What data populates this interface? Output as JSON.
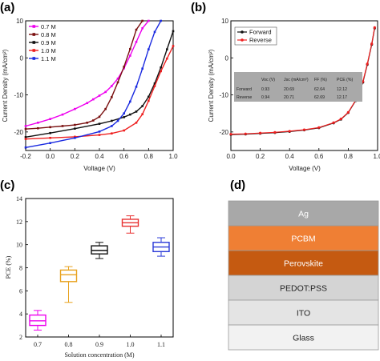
{
  "panels": {
    "a": "(a)",
    "b": "(b)",
    "c": "(c)",
    "d": "(d)"
  },
  "chart_data": [
    {
      "type": "line",
      "panel": "a",
      "xlabel": "Voltage (V)",
      "ylabel": "Current Density (mA/cm²)",
      "xlim": [
        -0.2,
        1.0
      ],
      "ylim": [
        -25,
        10
      ],
      "xticks": [
        "-0.2",
        "0.0",
        "0.2",
        "0.4",
        "0.6",
        "0.8",
        "1.0"
      ],
      "yticks": [
        "10",
        "0",
        "-10",
        "-20"
      ],
      "legend": "top-left",
      "series": [
        {
          "name": "0.7 M",
          "color": "#ee00ee",
          "x": [
            -0.2,
            -0.1,
            0.0,
            0.1,
            0.2,
            0.3,
            0.35,
            0.4,
            0.45,
            0.5,
            0.55,
            0.6,
            0.65,
            0.7,
            0.75,
            0.8
          ],
          "y": [
            -18.4,
            -17.5,
            -16.5,
            -15.3,
            -13.8,
            -12.2,
            -11.2,
            -10.2,
            -9.2,
            -7.6,
            -5.6,
            -2.8,
            0.6,
            4.3,
            8.0,
            11.0
          ]
        },
        {
          "name": "0.8 M",
          "color": "#7a1010",
          "x": [
            -0.2,
            -0.1,
            0.0,
            0.1,
            0.2,
            0.3,
            0.35,
            0.4,
            0.45,
            0.5,
            0.55,
            0.6,
            0.65,
            0.7,
            0.75
          ],
          "y": [
            -19.2,
            -19.0,
            -18.7,
            -18.4,
            -18.1,
            -17.5,
            -16.9,
            -15.9,
            -13.8,
            -10.6,
            -6.6,
            -2.4,
            2.4,
            7.6,
            11.0
          ]
        },
        {
          "name": "0.9 M",
          "color": "#111111",
          "x": [
            -0.2,
            0.0,
            0.2,
            0.4,
            0.5,
            0.6,
            0.65,
            0.7,
            0.75,
            0.8,
            0.85,
            0.9,
            0.95,
            1.0
          ],
          "y": [
            -21.4,
            -20.3,
            -19.1,
            -17.8,
            -17.0,
            -16.0,
            -15.3,
            -14.5,
            -13.0,
            -10.5,
            -6.9,
            -2.6,
            2.3,
            7.2
          ]
        },
        {
          "name": "1.0 M",
          "color": "#ee2020",
          "x": [
            -0.2,
            0.0,
            0.2,
            0.4,
            0.5,
            0.6,
            0.7,
            0.75,
            0.8,
            0.85,
            0.9,
            0.95,
            1.0
          ],
          "y": [
            -21.9,
            -21.6,
            -21.3,
            -20.8,
            -20.4,
            -19.6,
            -17.5,
            -15.2,
            -11.6,
            -7.6,
            -3.6,
            -0.2,
            3.2
          ]
        },
        {
          "name": "1.1 M",
          "color": "#1a2ae0",
          "x": [
            -0.2,
            0.0,
            0.2,
            0.4,
            0.5,
            0.55,
            0.6,
            0.65,
            0.7,
            0.75,
            0.8,
            0.85,
            0.9
          ],
          "y": [
            -24.2,
            -23.0,
            -21.6,
            -19.9,
            -18.4,
            -17.0,
            -15.0,
            -11.8,
            -7.8,
            -2.9,
            2.3,
            7.0,
            11.0
          ]
        }
      ]
    },
    {
      "type": "line",
      "panel": "b",
      "xlabel": "Voltage (V)",
      "ylabel": "Current Density (mA/cm²)",
      "xlim": [
        0.0,
        1.0
      ],
      "ylim": [
        -25,
        10
      ],
      "xticks": [
        "0.0",
        "0.2",
        "0.4",
        "0.6",
        "0.8",
        "1.0"
      ],
      "yticks": [
        "10",
        "0",
        "-10",
        "-20"
      ],
      "legend": "top-left",
      "series": [
        {
          "name": "Forward",
          "color": "#111111",
          "x": [
            0.0,
            0.1,
            0.2,
            0.3,
            0.4,
            0.5,
            0.6,
            0.7,
            0.75,
            0.8,
            0.85,
            0.9,
            0.93,
            0.96,
            0.98
          ],
          "y": [
            -20.7,
            -20.6,
            -20.4,
            -20.2,
            -19.9,
            -19.5,
            -18.9,
            -17.6,
            -16.6,
            -14.8,
            -11.6,
            -6.6,
            -1.8,
            3.6,
            8.0
          ]
        },
        {
          "name": "Reverse",
          "color": "#ee2020",
          "x": [
            0.0,
            0.1,
            0.2,
            0.3,
            0.4,
            0.5,
            0.6,
            0.7,
            0.75,
            0.8,
            0.85,
            0.9,
            0.93,
            0.96,
            0.98
          ],
          "y": [
            -20.6,
            -20.5,
            -20.3,
            -20.1,
            -19.8,
            -19.4,
            -18.8,
            -17.5,
            -16.5,
            -14.7,
            -11.5,
            -6.4,
            -1.6,
            3.8,
            8.2
          ]
        }
      ],
      "table": {
        "headers": [
          "",
          "Voc (V)",
          "Jsc (mA/cm²)",
          "FF (%)",
          "PCE (%)"
        ],
        "rows": [
          [
            "Forward",
            "0.93",
            "20.69",
            "62.64",
            "12.12"
          ],
          [
            "Reverse",
            "0.94",
            "20.71",
            "62.69",
            "12.17"
          ]
        ]
      }
    },
    {
      "type": "box",
      "panel": "c",
      "xlabel": "Solution concentration (M)",
      "ylabel": "PCE (%)",
      "ylim": [
        2,
        14
      ],
      "categories": [
        "0.7",
        "0.8",
        "0.9",
        "1.0",
        "1.1"
      ],
      "yticks": [
        "2",
        "4",
        "6",
        "8",
        "10",
        "12",
        "14"
      ],
      "boxes": [
        {
          "min": 2.6,
          "q1": 3.0,
          "median": 3.4,
          "q3": 3.9,
          "max": 4.3,
          "color": "#ee00ee"
        },
        {
          "min": 5.0,
          "q1": 6.8,
          "median": 7.4,
          "q3": 7.8,
          "max": 8.1,
          "color": "#e8a21e"
        },
        {
          "min": 8.8,
          "q1": 9.2,
          "median": 9.5,
          "q3": 9.9,
          "max": 10.2,
          "color": "#111111"
        },
        {
          "min": 11.0,
          "q1": 11.6,
          "median": 11.9,
          "q3": 12.2,
          "max": 12.5,
          "color": "#e83030"
        },
        {
          "min": 9.0,
          "q1": 9.4,
          "median": 9.8,
          "q3": 10.2,
          "max": 10.6,
          "color": "#2a3ad8"
        }
      ]
    }
  ],
  "device_stack": [
    {
      "label": "Ag",
      "color": "#a8a8a8",
      "text": "#ffffff"
    },
    {
      "label": "PCBM",
      "color": "#ef7f34",
      "text": "#ffffff"
    },
    {
      "label": "Perovskite",
      "color": "#c55a11",
      "text": "#ffffff"
    },
    {
      "label": "PEDOT:PSS",
      "color": "#d4d4d4",
      "text": "#222222"
    },
    {
      "label": "ITO",
      "color": "#e4e4e4",
      "text": "#222222"
    },
    {
      "label": "Glass",
      "color": "#f2f2f2",
      "text": "#222222"
    }
  ]
}
